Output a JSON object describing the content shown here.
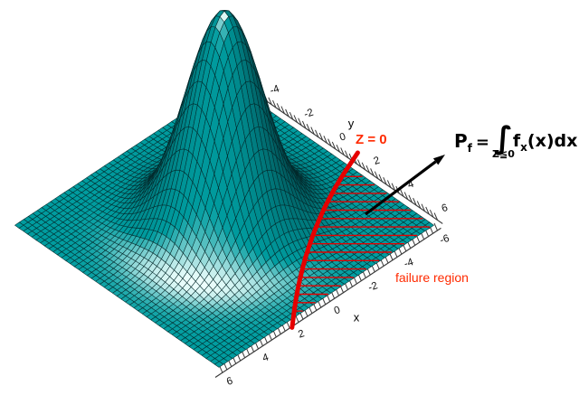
{
  "figure_title": "",
  "axis": {
    "x_name": "x",
    "y_name": "y"
  },
  "annotations": {
    "z_label": "Z = 0",
    "failure_label": "failure region",
    "formula": {
      "lhs": "P",
      "lhs_sub": "f",
      "equals": "=",
      "integral": "∫",
      "domain": "Z≦0",
      "integrand": "f",
      "integrand_sub": "x",
      "rest": "(x)dx"
    }
  },
  "colors": {
    "background": "#FFFFFF",
    "surface_base": "#009C9F",
    "surface_dark": "#014A4E",
    "surface_light": "#EEFFFD",
    "mesh_line": "#03292B",
    "axis_line": "#3A3A3A",
    "tick_label": "#111111",
    "failure_red": "#E60000",
    "annotation_red": "#FF2A00",
    "arrow_black": "#000000"
  },
  "chart_data": {
    "type": "surface",
    "description": "3D bell-shaped bivariate normal probability density surface f(x,y) over the x-y plane; the limit state Z = 0 curve separates the safe region from the red-hatched failure region (Z <= 0); arrow links the hatched region to the failure probability formula",
    "surface_function": "z = exp(-(x^2+y^2)/(2*sigma^2))",
    "sigma": 1.6,
    "peak_xy": [
      0,
      0
    ],
    "peak_height_relative": 1,
    "x_range": [
      -6,
      6
    ],
    "y_range": [
      -6,
      6
    ],
    "xlabel": "x",
    "ylabel": "y",
    "x_tick_labels": [
      -6,
      -4,
      -2,
      0,
      2,
      4,
      6
    ],
    "y_tick_labels": [
      -6,
      -4,
      -2,
      0,
      2,
      4,
      6
    ],
    "minor_tick_step": 0.25,
    "mesh_step": 0.25,
    "limit_state_curve_xy": [
      [
        -6,
        1.0
      ],
      [
        -5.5,
        1.2
      ],
      [
        -5,
        1.42
      ],
      [
        -4.5,
        1.65
      ],
      [
        -4,
        1.9
      ],
      [
        -3.5,
        2.16
      ],
      [
        -3,
        2.44
      ],
      [
        -2.5,
        2.74
      ],
      [
        -2,
        3.05
      ],
      [
        -1.5,
        3.38
      ],
      [
        -1,
        3.72
      ],
      [
        -0.5,
        4.08
      ],
      [
        0,
        4.46
      ],
      [
        0.5,
        4.85
      ],
      [
        1,
        5.26
      ],
      [
        1.5,
        5.69
      ],
      [
        1.85,
        6.0
      ]
    ],
    "failure_region_hatch": "horizontal red lines between limit state curve and plot edge",
    "arrow": "from failure region to failure probability formula",
    "legend": "none",
    "grid": "surface mesh"
  }
}
